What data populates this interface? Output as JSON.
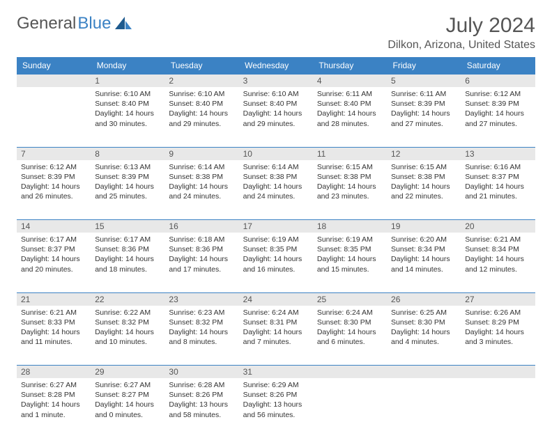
{
  "brand": {
    "part1": "General",
    "part2": "Blue"
  },
  "title": "July 2024",
  "location": "Dilkon, Arizona, United States",
  "colors": {
    "header_bg": "#3b82c4",
    "daynum_bg": "#e8e8e8",
    "border": "#3b82c4"
  },
  "weekdays": [
    "Sunday",
    "Monday",
    "Tuesday",
    "Wednesday",
    "Thursday",
    "Friday",
    "Saturday"
  ],
  "weeks": [
    {
      "days": [
        {
          "num": "",
          "sunrise": "",
          "sunset": "",
          "daylight": ""
        },
        {
          "num": "1",
          "sunrise": "Sunrise: 6:10 AM",
          "sunset": "Sunset: 8:40 PM",
          "daylight": "Daylight: 14 hours and 30 minutes."
        },
        {
          "num": "2",
          "sunrise": "Sunrise: 6:10 AM",
          "sunset": "Sunset: 8:40 PM",
          "daylight": "Daylight: 14 hours and 29 minutes."
        },
        {
          "num": "3",
          "sunrise": "Sunrise: 6:10 AM",
          "sunset": "Sunset: 8:40 PM",
          "daylight": "Daylight: 14 hours and 29 minutes."
        },
        {
          "num": "4",
          "sunrise": "Sunrise: 6:11 AM",
          "sunset": "Sunset: 8:40 PM",
          "daylight": "Daylight: 14 hours and 28 minutes."
        },
        {
          "num": "5",
          "sunrise": "Sunrise: 6:11 AM",
          "sunset": "Sunset: 8:39 PM",
          "daylight": "Daylight: 14 hours and 27 minutes."
        },
        {
          "num": "6",
          "sunrise": "Sunrise: 6:12 AM",
          "sunset": "Sunset: 8:39 PM",
          "daylight": "Daylight: 14 hours and 27 minutes."
        }
      ]
    },
    {
      "days": [
        {
          "num": "7",
          "sunrise": "Sunrise: 6:12 AM",
          "sunset": "Sunset: 8:39 PM",
          "daylight": "Daylight: 14 hours and 26 minutes."
        },
        {
          "num": "8",
          "sunrise": "Sunrise: 6:13 AM",
          "sunset": "Sunset: 8:39 PM",
          "daylight": "Daylight: 14 hours and 25 minutes."
        },
        {
          "num": "9",
          "sunrise": "Sunrise: 6:14 AM",
          "sunset": "Sunset: 8:38 PM",
          "daylight": "Daylight: 14 hours and 24 minutes."
        },
        {
          "num": "10",
          "sunrise": "Sunrise: 6:14 AM",
          "sunset": "Sunset: 8:38 PM",
          "daylight": "Daylight: 14 hours and 24 minutes."
        },
        {
          "num": "11",
          "sunrise": "Sunrise: 6:15 AM",
          "sunset": "Sunset: 8:38 PM",
          "daylight": "Daylight: 14 hours and 23 minutes."
        },
        {
          "num": "12",
          "sunrise": "Sunrise: 6:15 AM",
          "sunset": "Sunset: 8:38 PM",
          "daylight": "Daylight: 14 hours and 22 minutes."
        },
        {
          "num": "13",
          "sunrise": "Sunrise: 6:16 AM",
          "sunset": "Sunset: 8:37 PM",
          "daylight": "Daylight: 14 hours and 21 minutes."
        }
      ]
    },
    {
      "days": [
        {
          "num": "14",
          "sunrise": "Sunrise: 6:17 AM",
          "sunset": "Sunset: 8:37 PM",
          "daylight": "Daylight: 14 hours and 20 minutes."
        },
        {
          "num": "15",
          "sunrise": "Sunrise: 6:17 AM",
          "sunset": "Sunset: 8:36 PM",
          "daylight": "Daylight: 14 hours and 18 minutes."
        },
        {
          "num": "16",
          "sunrise": "Sunrise: 6:18 AM",
          "sunset": "Sunset: 8:36 PM",
          "daylight": "Daylight: 14 hours and 17 minutes."
        },
        {
          "num": "17",
          "sunrise": "Sunrise: 6:19 AM",
          "sunset": "Sunset: 8:35 PM",
          "daylight": "Daylight: 14 hours and 16 minutes."
        },
        {
          "num": "18",
          "sunrise": "Sunrise: 6:19 AM",
          "sunset": "Sunset: 8:35 PM",
          "daylight": "Daylight: 14 hours and 15 minutes."
        },
        {
          "num": "19",
          "sunrise": "Sunrise: 6:20 AM",
          "sunset": "Sunset: 8:34 PM",
          "daylight": "Daylight: 14 hours and 14 minutes."
        },
        {
          "num": "20",
          "sunrise": "Sunrise: 6:21 AM",
          "sunset": "Sunset: 8:34 PM",
          "daylight": "Daylight: 14 hours and 12 minutes."
        }
      ]
    },
    {
      "days": [
        {
          "num": "21",
          "sunrise": "Sunrise: 6:21 AM",
          "sunset": "Sunset: 8:33 PM",
          "daylight": "Daylight: 14 hours and 11 minutes."
        },
        {
          "num": "22",
          "sunrise": "Sunrise: 6:22 AM",
          "sunset": "Sunset: 8:32 PM",
          "daylight": "Daylight: 14 hours and 10 minutes."
        },
        {
          "num": "23",
          "sunrise": "Sunrise: 6:23 AM",
          "sunset": "Sunset: 8:32 PM",
          "daylight": "Daylight: 14 hours and 8 minutes."
        },
        {
          "num": "24",
          "sunrise": "Sunrise: 6:24 AM",
          "sunset": "Sunset: 8:31 PM",
          "daylight": "Daylight: 14 hours and 7 minutes."
        },
        {
          "num": "25",
          "sunrise": "Sunrise: 6:24 AM",
          "sunset": "Sunset: 8:30 PM",
          "daylight": "Daylight: 14 hours and 6 minutes."
        },
        {
          "num": "26",
          "sunrise": "Sunrise: 6:25 AM",
          "sunset": "Sunset: 8:30 PM",
          "daylight": "Daylight: 14 hours and 4 minutes."
        },
        {
          "num": "27",
          "sunrise": "Sunrise: 6:26 AM",
          "sunset": "Sunset: 8:29 PM",
          "daylight": "Daylight: 14 hours and 3 minutes."
        }
      ]
    },
    {
      "days": [
        {
          "num": "28",
          "sunrise": "Sunrise: 6:27 AM",
          "sunset": "Sunset: 8:28 PM",
          "daylight": "Daylight: 14 hours and 1 minute."
        },
        {
          "num": "29",
          "sunrise": "Sunrise: 6:27 AM",
          "sunset": "Sunset: 8:27 PM",
          "daylight": "Daylight: 14 hours and 0 minutes."
        },
        {
          "num": "30",
          "sunrise": "Sunrise: 6:28 AM",
          "sunset": "Sunset: 8:26 PM",
          "daylight": "Daylight: 13 hours and 58 minutes."
        },
        {
          "num": "31",
          "sunrise": "Sunrise: 6:29 AM",
          "sunset": "Sunset: 8:26 PM",
          "daylight": "Daylight: 13 hours and 56 minutes."
        },
        {
          "num": "",
          "sunrise": "",
          "sunset": "",
          "daylight": ""
        },
        {
          "num": "",
          "sunrise": "",
          "sunset": "",
          "daylight": ""
        },
        {
          "num": "",
          "sunrise": "",
          "sunset": "",
          "daylight": ""
        }
      ]
    }
  ]
}
